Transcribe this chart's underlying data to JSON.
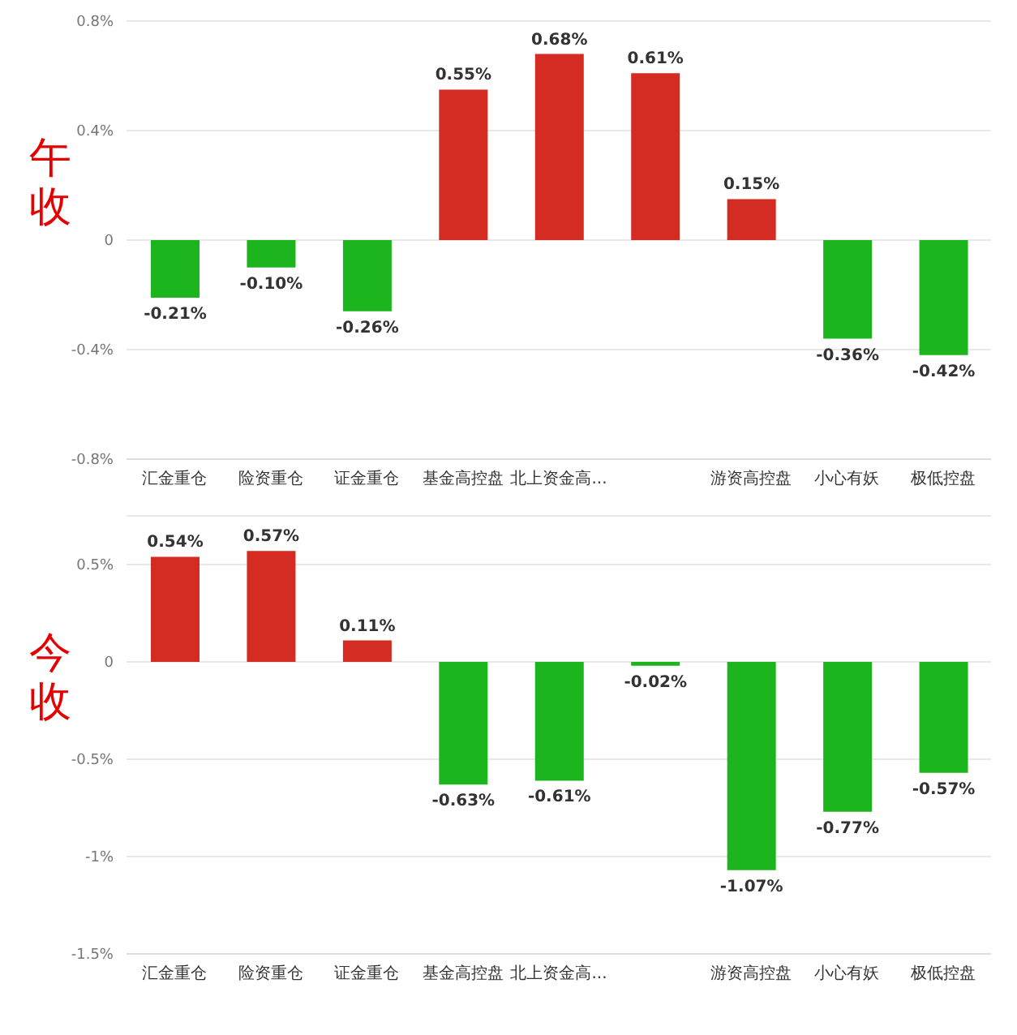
{
  "chart_data": [
    {
      "type": "bar",
      "ylabel": "午收",
      "categories": [
        "汇金重仓",
        "险资重仓",
        "证金重仓",
        "基金高控盘",
        "北上资金高...",
        null,
        "游资高控盘",
        "小心有妖",
        "极低控盘"
      ],
      "values": [
        -0.21,
        -0.1,
        -0.26,
        0.55,
        0.68,
        0.61,
        0.15,
        -0.36,
        -0.42
      ],
      "value_labels": [
        "-0.21%",
        "-0.10%",
        "-0.26%",
        "0.55%",
        "0.68%",
        "0.61%",
        "0.15%",
        "-0.36%",
        "-0.42%"
      ],
      "colors": [
        "#1db51d",
        "#1db51d",
        "#1db51d",
        "#d42b22",
        "#d42b22",
        "#d42b22",
        "#d42b22",
        "#1db51d",
        "#1db51d"
      ],
      "ylim": [
        -0.8,
        0.8
      ],
      "yticks": [
        {
          "value": -0.8,
          "label": "-0.8%"
        },
        {
          "value": -0.4,
          "label": "-0.4%"
        },
        {
          "value": 0,
          "label": "0"
        },
        {
          "value": 0.4,
          "label": "0.4%"
        },
        {
          "value": 0.8,
          "label": "0.8%"
        }
      ],
      "grid": "y"
    },
    {
      "type": "bar",
      "ylabel": "今收",
      "categories": [
        "汇金重仓",
        "险资重仓",
        "证金重仓",
        "基金高控盘",
        "北上资金高...",
        null,
        "游资高控盘",
        "小心有妖",
        "极低控盘"
      ],
      "values": [
        0.54,
        0.57,
        0.11,
        -0.63,
        -0.61,
        -0.02,
        -1.07,
        -0.77,
        -0.57
      ],
      "value_labels": [
        "0.54%",
        "0.57%",
        "0.11%",
        "-0.63%",
        "-0.61%",
        "-0.02%",
        "-1.07%",
        "-0.77%",
        "-0.57%"
      ],
      "colors": [
        "#d42b22",
        "#d42b22",
        "#d42b22",
        "#1db51d",
        "#1db51d",
        "#1db51d",
        "#1db51d",
        "#1db51d",
        "#1db51d"
      ],
      "ylim": [
        -1.5,
        0.75
      ],
      "yticks": [
        {
          "value": -1.5,
          "label": "-1.5%"
        },
        {
          "value": -1,
          "label": "-1%"
        },
        {
          "value": -0.5,
          "label": "-0.5%"
        },
        {
          "value": 0,
          "label": "0"
        },
        {
          "value": 0.5,
          "label": "0.5%"
        }
      ],
      "grid": "y"
    }
  ]
}
